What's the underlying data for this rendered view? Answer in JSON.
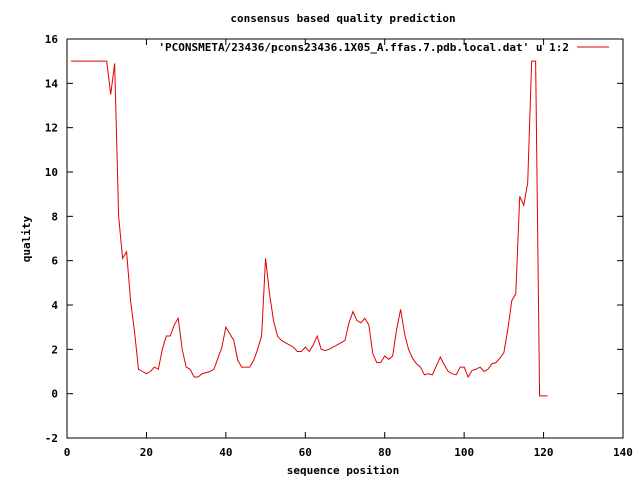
{
  "chart_data": {
    "type": "line",
    "title": "consensus based quality prediction",
    "xlabel": "sequence position",
    "ylabel": "quality",
    "xlim": [
      0,
      140
    ],
    "ylim": [
      -2,
      16
    ],
    "xticks": [
      0,
      20,
      40,
      60,
      80,
      100,
      120,
      140
    ],
    "yticks": [
      -2,
      0,
      2,
      4,
      6,
      8,
      10,
      12,
      14,
      16
    ],
    "legend_position": "top-right",
    "series": [
      {
        "name": "'PCONSMETA/23436/pcons23436.1X05_A.ffas.7.pdb.local.dat' u 1:2",
        "color": "#e00000",
        "x": [
          1,
          2,
          3,
          4,
          5,
          6,
          7,
          8,
          9,
          10,
          11,
          12,
          13,
          14,
          15,
          16,
          17,
          18,
          19,
          20,
          21,
          22,
          23,
          24,
          25,
          26,
          27,
          28,
          29,
          30,
          31,
          32,
          33,
          34,
          35,
          36,
          37,
          38,
          39,
          40,
          41,
          42,
          43,
          44,
          45,
          46,
          47,
          48,
          49,
          50,
          51,
          52,
          53,
          54,
          55,
          56,
          57,
          58,
          59,
          60,
          61,
          62,
          63,
          64,
          65,
          66,
          67,
          68,
          69,
          70,
          71,
          72,
          73,
          74,
          75,
          76,
          77,
          78,
          79,
          80,
          81,
          82,
          83,
          84,
          85,
          86,
          87,
          88,
          89,
          90,
          91,
          92,
          93,
          94,
          95,
          96,
          97,
          98,
          99,
          100,
          101,
          102,
          103,
          104,
          105,
          106,
          107,
          108,
          109,
          110,
          111,
          112,
          113,
          114,
          115,
          116,
          117,
          118,
          119,
          120,
          121
        ],
        "values": [
          15,
          15,
          15,
          15,
          15,
          15,
          15,
          15,
          15,
          15,
          13.5,
          14.9,
          8,
          6.1,
          6.4,
          4.2,
          2.8,
          1.1,
          1,
          0.9,
          1,
          1.2,
          1.1,
          2,
          2.6,
          2.6,
          3.1,
          3.4,
          2,
          1.2,
          1.1,
          0.75,
          0.75,
          0.9,
          0.95,
          1,
          1.1,
          1.6,
          2.1,
          3,
          2.7,
          2.4,
          1.5,
          1.2,
          1.2,
          1.2,
          1.5,
          2,
          2.6,
          6.1,
          4.5,
          3.3,
          2.6,
          2.4,
          2.3,
          2.2,
          2.1,
          1.9,
          1.9,
          2.1,
          1.9,
          2.2,
          2.6,
          2,
          1.95,
          2,
          2.1,
          2.2,
          2.3,
          2.4,
          3.2,
          3.7,
          3.3,
          3.2,
          3.4,
          3.1,
          1.8,
          1.4,
          1.4,
          1.7,
          1.55,
          1.7,
          2.9,
          3.8,
          2.7,
          2,
          1.6,
          1.35,
          1.2,
          0.85,
          0.9,
          0.85,
          1.25,
          1.65,
          1.3,
          1,
          0.9,
          0.85,
          1.2,
          1.2,
          0.75,
          1.05,
          1.1,
          1.2,
          1,
          1.1,
          1.35,
          1.4,
          1.6,
          1.85,
          2.9,
          4.2,
          4.5,
          8.9,
          8.5,
          9.5,
          15,
          15,
          -0.1,
          -0.1,
          -0.1
        ]
      }
    ]
  }
}
